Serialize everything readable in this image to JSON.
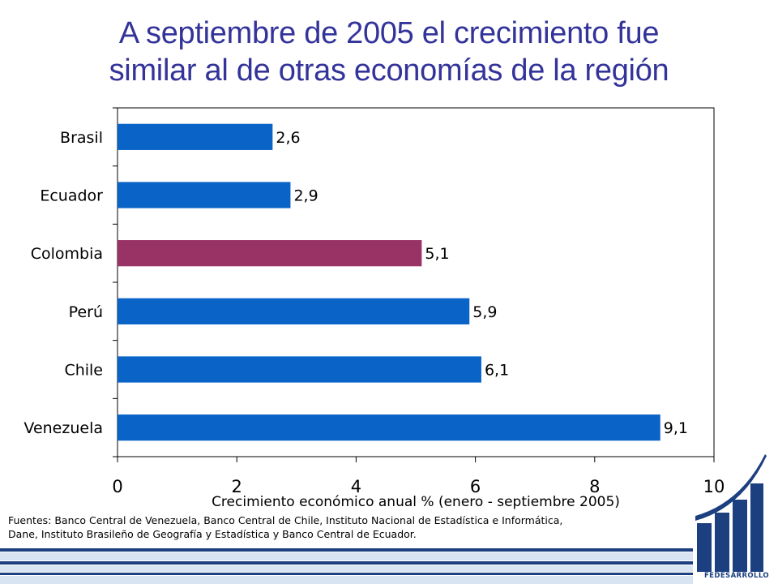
{
  "title": {
    "line1": "A septiembre de 2005 el crecimiento fue",
    "line2": "similar al de otras economías de la región"
  },
  "chart_data": {
    "type": "bar",
    "orientation": "horizontal",
    "categories": [
      "Brasil",
      "Ecuador",
      "Colombia",
      "Perú",
      "Chile",
      "Venezuela"
    ],
    "values": [
      2.6,
      2.9,
      5.1,
      5.9,
      6.1,
      9.1
    ],
    "value_labels": [
      "2,6",
      "2,9",
      "5,1",
      "5,9",
      "6,1",
      "9,1"
    ],
    "highlight": "Colombia",
    "xlabel": "Crecimiento económico anual % (enero - septiembre 2005)",
    "xlim": [
      0,
      10
    ],
    "xticks": [
      0,
      2,
      4,
      6,
      8,
      10
    ],
    "grid": false,
    "colors": {
      "bar": "#0a64c8",
      "highlight": "#993366"
    }
  },
  "sources": {
    "line1": "Fuentes: Banco Central de Venezuela, Banco Central de Chile, Instituto Nacional de Estadística e Informática,",
    "line2": "Dane, Instituto Brasileño de Geografía y Estadística y Banco Central de Ecuador."
  },
  "logo": {
    "icon": "fedesarrollo-logo-icon",
    "text": "FEDESARROLLO"
  },
  "colors": {
    "title": "#33339a",
    "brand": "#1c3f80"
  }
}
